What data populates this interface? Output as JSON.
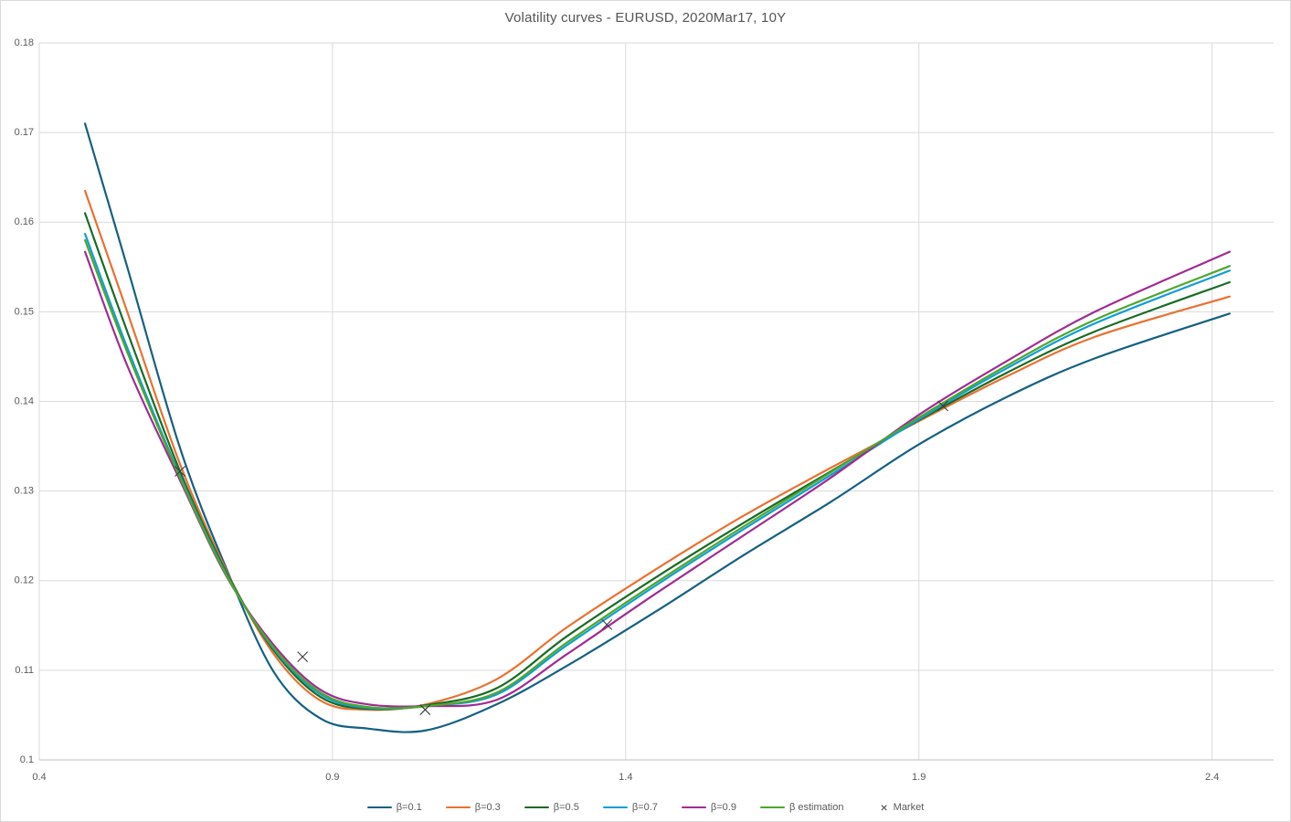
{
  "chart_data": {
    "type": "line",
    "title": "Volatility curves - EURUSD, 2020Mar17, 10Y",
    "xlabel": "",
    "ylabel": "",
    "grid": true,
    "legend_position": "bottom",
    "x_axis": {
      "min": 0.4,
      "max": 2.505,
      "ticks": [
        0.4,
        0.9,
        1.4,
        1.9,
        2.4
      ],
      "tick_labels": [
        "0.4",
        "0.9",
        "1.4",
        "1.9",
        "2.4"
      ]
    },
    "y_axis": {
      "min": 0.1,
      "max": 0.18,
      "ticks": [
        0.1,
        0.11,
        0.12,
        0.13,
        0.14,
        0.15,
        0.16,
        0.17,
        0.18
      ],
      "tick_labels": [
        "0.1",
        "0.11",
        "0.12",
        "0.13",
        "0.14",
        "0.15",
        "0.16",
        "0.17",
        "0.18"
      ]
    },
    "x": [
      0.478,
      0.55,
      0.64,
      0.72,
      0.8,
      0.88,
      0.96,
      1.06,
      1.18,
      1.3,
      1.45,
      1.6,
      1.75,
      1.9,
      2.05,
      2.2,
      2.43
    ],
    "series": [
      {
        "name": "β=0.1",
        "color": "#156082",
        "values": [
          0.171,
          0.155,
          0.1348,
          0.1212,
          0.1098,
          0.1046,
          0.1035,
          0.1033,
          0.1062,
          0.1105,
          0.1165,
          0.1228,
          0.1288,
          0.1352,
          0.1405,
          0.1448,
          0.1498
        ]
      },
      {
        "name": "β=0.3",
        "color": "#E97132",
        "values": [
          0.1635,
          0.15,
          0.133,
          0.121,
          0.1118,
          0.1066,
          0.1056,
          0.1062,
          0.109,
          0.1148,
          0.1212,
          0.1272,
          0.1326,
          0.1378,
          0.1428,
          0.1472,
          0.1517
        ]
      },
      {
        "name": "β=0.5",
        "color": "#196B24",
        "values": [
          0.161,
          0.1478,
          0.1322,
          0.1208,
          0.1122,
          0.107,
          0.1057,
          0.1061,
          0.108,
          0.1138,
          0.1203,
          0.1264,
          0.1322,
          0.1379,
          0.1432,
          0.1478,
          0.1533
        ]
      },
      {
        "name": "β=0.7",
        "color": "#0F9ED5",
        "values": [
          0.1587,
          0.146,
          0.1317,
          0.1206,
          0.1124,
          0.1073,
          0.1058,
          0.106,
          0.1073,
          0.1128,
          0.1194,
          0.1257,
          0.1318,
          0.138,
          0.1437,
          0.1487,
          0.1546
        ]
      },
      {
        "name": "β=0.9",
        "color": "#A02B93",
        "values": [
          0.1567,
          0.144,
          0.1312,
          0.1204,
          0.1128,
          0.1078,
          0.1062,
          0.106,
          0.1067,
          0.1118,
          0.1185,
          0.125,
          0.1315,
          0.1385,
          0.1445,
          0.15,
          0.1567
        ]
      },
      {
        "name": "β estimation",
        "color": "#4EA72E",
        "values": [
          0.158,
          0.1455,
          0.1315,
          0.1205,
          0.1125,
          0.1075,
          0.1059,
          0.106,
          0.1075,
          0.1131,
          0.1197,
          0.126,
          0.1321,
          0.1382,
          0.144,
          0.1491,
          0.1551
        ]
      }
    ],
    "market": {
      "name": "Market",
      "color": "#3B3B3B",
      "points": [
        [
          0.64,
          0.1322
        ],
        [
          0.849,
          0.1115
        ],
        [
          1.058,
          0.1056
        ],
        [
          1.368,
          0.1151
        ],
        [
          1.941,
          0.1395
        ]
      ]
    }
  },
  "colors": {
    "grid": "#D9D9D9",
    "axis_y": "#D9D9D9",
    "axis_x": "#BFBFBF",
    "tick_text": "#595959",
    "title_text": "#555555",
    "background": "#FFFFFF"
  }
}
